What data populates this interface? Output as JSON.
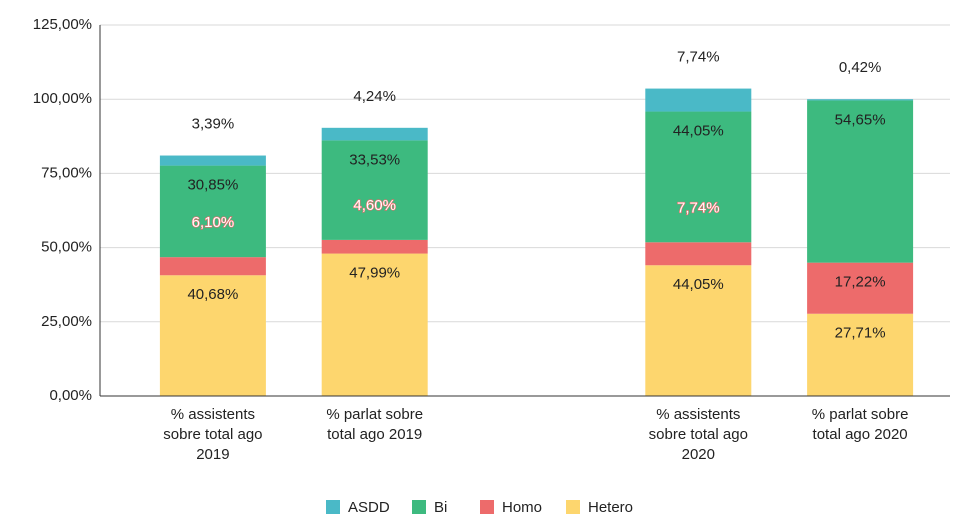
{
  "chart_data": {
    "type": "stacked_bar",
    "categories": [
      "% assistents sobre total ago 2019",
      "% parlat sobre total ago 2019",
      null,
      "% assistents sobre total ago 2020",
      "% parlat sobre total ago 2020"
    ],
    "series": [
      {
        "name": "Hetero",
        "color": "#fdd66e",
        "values": [
          40.68,
          47.99,
          null,
          44.05,
          27.71
        ],
        "value_labels": [
          "40,68%",
          "47,99%",
          null,
          "44,05%",
          "27,71%"
        ]
      },
      {
        "name": "Homo",
        "color": "#ed6b6b",
        "values": [
          6.1,
          4.6,
          null,
          7.74,
          17.22
        ],
        "value_labels": [
          "6,10%",
          "4,60%",
          null,
          "7,74%",
          "17,22%"
        ]
      },
      {
        "name": "Bi",
        "color": "#3dba7f",
        "values": [
          30.85,
          33.53,
          null,
          44.05,
          54.65
        ],
        "value_labels": [
          "30,85%",
          "33,53%",
          null,
          "44,05%",
          "54,65%"
        ]
      },
      {
        "name": "ASDD",
        "color": "#4ab9c7",
        "values": [
          3.39,
          4.24,
          null,
          7.74,
          0.42
        ],
        "value_labels": [
          "3,39%",
          "4,24%",
          null,
          "7,74%",
          "0,42%"
        ]
      }
    ],
    "ylim": [
      0,
      125
    ],
    "yticks": [
      {
        "value": 0,
        "label": "0,00%"
      },
      {
        "value": 25,
        "label": "25,00%"
      },
      {
        "value": 50,
        "label": "50,00%"
      },
      {
        "value": 75,
        "label": "75,00%"
      },
      {
        "value": 100,
        "label": "100,00%"
      },
      {
        "value": 125,
        "label": "125,00%"
      }
    ],
    "grid": true,
    "legend": "bottom"
  }
}
